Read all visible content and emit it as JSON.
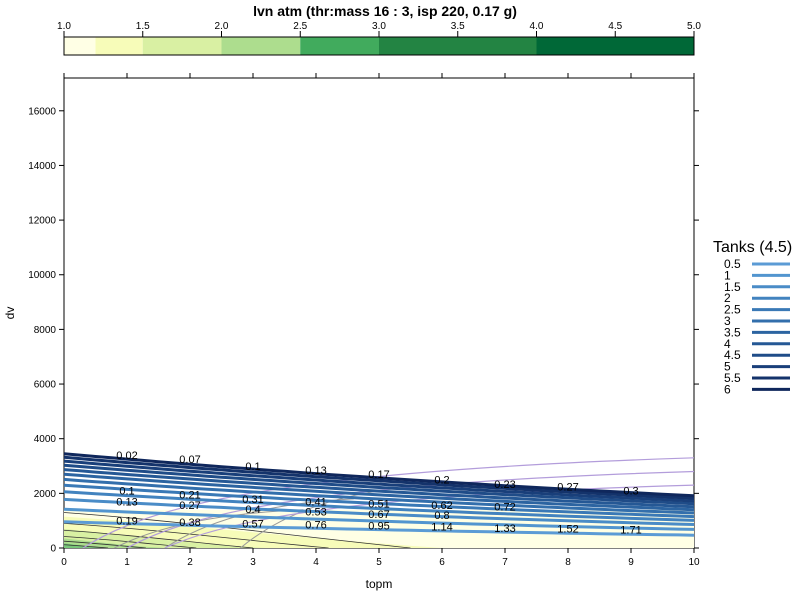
{
  "chart_data": {
    "type": "contour",
    "title": "lvn atm (thr:mass 16 : 3, isp 220, 0.17 g)",
    "xlabel": "topm",
    "ylabel": "dv",
    "xlim": [
      0,
      10
    ],
    "ylim": [
      0,
      17200
    ],
    "x_ticks": [
      "0",
      "1",
      "2",
      "3",
      "4",
      "5",
      "6",
      "7",
      "8",
      "9",
      "10"
    ],
    "y_ticks": [
      "0",
      "2000",
      "4000",
      "6000",
      "8000",
      "10000",
      "12000",
      "14000",
      "16000"
    ],
    "colorkey": {
      "breaks": [
        1.0,
        1.2,
        1.5,
        2.0,
        2.5,
        3.0,
        4.0,
        5.0
      ],
      "labels": [
        "1.0",
        "1.5",
        "2.0",
        "2.5",
        "3.0",
        "3.5",
        "4.0",
        "4.5",
        "5.0"
      ],
      "colors": [
        "#ffffe5",
        "#f7fcb9",
        "#d9f0a3",
        "#addd8e",
        "#41ab5d",
        "#238443",
        "#006837",
        "#004529"
      ]
    },
    "legend": {
      "title": "Tanks (4.5)",
      "position": "right",
      "entries": [
        "0.5",
        "1",
        "1.5",
        "2",
        "2.5",
        "3",
        "3.5",
        "4",
        "4.5",
        "5",
        "5.5",
        "6"
      ],
      "colors": [
        "#5b9bd5",
        "#5295cf",
        "#4a8cc7",
        "#4283bf",
        "#3a79b6",
        "#336fac",
        "#2c64a1",
        "#255895",
        "#1f4c88",
        "#193f7a",
        "#14336b",
        "#0f275c"
      ]
    },
    "tank_curves": {
      "tanks": [
        0.5,
        1,
        1.5,
        2,
        2.5,
        3,
        3.5,
        4,
        4.5,
        5,
        5.5,
        6
      ],
      "dv_at_topm0": [
        960,
        1420,
        1780,
        2060,
        2300,
        2510,
        2700,
        2870,
        3030,
        3180,
        3320,
        3450
      ],
      "dv_at_topm10": [
        470,
        680,
        860,
        1010,
        1150,
        1280,
        1400,
        1510,
        1620,
        1720,
        1820,
        1910
      ]
    },
    "annotations": [
      {
        "x": 1,
        "y": 1000,
        "text": "0.19"
      },
      {
        "x": 2,
        "y": 950,
        "text": "0.38"
      },
      {
        "x": 3,
        "y": 900,
        "text": "0.57"
      },
      {
        "x": 4,
        "y": 860,
        "text": "0.76"
      },
      {
        "x": 5,
        "y": 820,
        "text": "0.95"
      },
      {
        "x": 6,
        "y": 780,
        "text": "1.14"
      },
      {
        "x": 7,
        "y": 740,
        "text": "1.33"
      },
      {
        "x": 8,
        "y": 710,
        "text": "1.52"
      },
      {
        "x": 9,
        "y": 680,
        "text": "1.71"
      },
      {
        "x": 1,
        "y": 1700,
        "text": "0.13"
      },
      {
        "x": 2,
        "y": 1580,
        "text": "0.27"
      },
      {
        "x": 3,
        "y": 1420,
        "text": "0.4"
      },
      {
        "x": 4,
        "y": 1330,
        "text": "0.53"
      },
      {
        "x": 5,
        "y": 1250,
        "text": "0.67"
      },
      {
        "x": 6,
        "y": 1200,
        "text": "0.8"
      },
      {
        "x": 1,
        "y": 2100,
        "text": "0.1"
      },
      {
        "x": 2,
        "y": 1950,
        "text": "0.21"
      },
      {
        "x": 3,
        "y": 1800,
        "text": "0.31"
      },
      {
        "x": 4,
        "y": 1700,
        "text": "0.41"
      },
      {
        "x": 5,
        "y": 1620,
        "text": "0.51"
      },
      {
        "x": 6,
        "y": 1580,
        "text": "0.62"
      },
      {
        "x": 7,
        "y": 1520,
        "text": "0.72"
      },
      {
        "x": 1,
        "y": 3400,
        "text": "0.02"
      },
      {
        "x": 2,
        "y": 3250,
        "text": "0.07"
      },
      {
        "x": 3,
        "y": 3000,
        "text": "0.1"
      },
      {
        "x": 4,
        "y": 2850,
        "text": "0.13"
      },
      {
        "x": 5,
        "y": 2700,
        "text": "0.17"
      },
      {
        "x": 6,
        "y": 2500,
        "text": "0.2"
      },
      {
        "x": 7,
        "y": 2350,
        "text": "0.23"
      },
      {
        "x": 8,
        "y": 2250,
        "text": "0.27"
      },
      {
        "x": 9,
        "y": 2100,
        "text": "0.3"
      }
    ]
  }
}
